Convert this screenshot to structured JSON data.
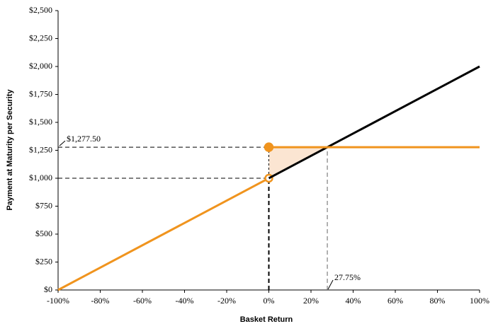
{
  "chart_data": {
    "type": "line",
    "x_label": "Basket Return",
    "y_label": "Payment at Maturity per Security",
    "xlim": [
      -100,
      100
    ],
    "ylim": [
      0,
      2500
    ],
    "xticks": [
      {
        "value": -100,
        "label": "-100%"
      },
      {
        "value": -80,
        "label": "-80%"
      },
      {
        "value": -60,
        "label": "-60%"
      },
      {
        "value": -40,
        "label": "-40%"
      },
      {
        "value": -20,
        "label": "-20%"
      },
      {
        "value": 0,
        "label": "0%"
      },
      {
        "value": 20,
        "label": "20%"
      },
      {
        "value": 40,
        "label": "40%"
      },
      {
        "value": 60,
        "label": "60%"
      },
      {
        "value": 80,
        "label": "80%"
      },
      {
        "value": 100,
        "label": "100%"
      }
    ],
    "yticks": [
      {
        "value": 0,
        "label": "$0"
      },
      {
        "value": 250,
        "label": "$250"
      },
      {
        "value": 500,
        "label": "$500"
      },
      {
        "value": 750,
        "label": "$750"
      },
      {
        "value": 1000,
        "label": "$1,000"
      },
      {
        "value": 1250,
        "label": "$1,250"
      },
      {
        "value": 1500,
        "label": "$1,500"
      },
      {
        "value": 1750,
        "label": "$1,750"
      },
      {
        "value": 2000,
        "label": "$2,000"
      },
      {
        "value": 2250,
        "label": "$2,250"
      },
      {
        "value": 2500,
        "label": "$2,500"
      }
    ],
    "series": [
      {
        "color": "#f0941e",
        "x": [
          -100,
          0
        ],
        "values": [
          0,
          1000
        ],
        "end_marker": "open"
      },
      {
        "color": "#000000",
        "x": [
          0,
          100
        ],
        "values": [
          1000,
          2000
        ]
      },
      {
        "color": "#f0941e",
        "x": [
          0,
          100
        ],
        "values": [
          1277.5,
          1277.5
        ],
        "start_marker": "filled"
      }
    ],
    "annotations": [
      {
        "label": "$1,277.50",
        "value": 1277.5
      },
      {
        "label": "27.75%",
        "value": 27.75
      }
    ],
    "shade_color": "#fbe5d2"
  }
}
